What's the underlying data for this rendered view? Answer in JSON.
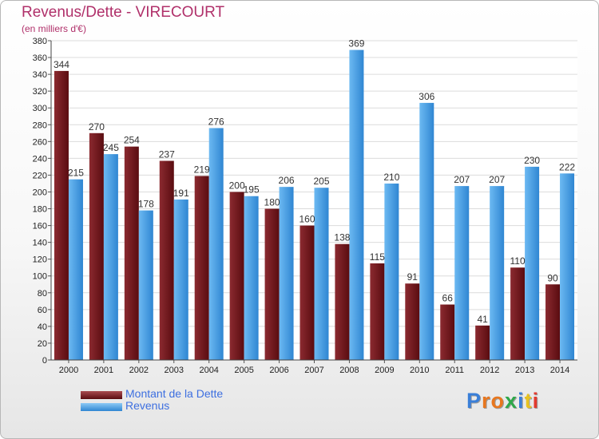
{
  "chart_data": {
    "type": "bar",
    "title": "Revenus/Dette - VIRECOURT",
    "subtitle": "(en milliers d'€)",
    "categories": [
      "2000",
      "2001",
      "2002",
      "2003",
      "2004",
      "2005",
      "2006",
      "2007",
      "2008",
      "2009",
      "2010",
      "2011",
      "2012",
      "2013",
      "2014"
    ],
    "series": [
      {
        "name": "Montant de la Dette",
        "color": "#7a1a1e",
        "values": [
          344,
          270,
          254,
          237,
          219,
          200,
          180,
          160,
          138,
          115,
          91,
          66,
          41,
          110,
          90
        ]
      },
      {
        "name": "Revenus",
        "color": "#4aa3e8",
        "values": [
          215,
          245,
          178,
          191,
          276,
          195,
          206,
          205,
          369,
          210,
          306,
          207,
          207,
          230,
          222
        ]
      }
    ],
    "ylim": [
      0,
      380
    ],
    "ytick_step": 20,
    "grid": true,
    "legend_position": "bottom-left"
  },
  "logo": {
    "letters": [
      "P",
      "r",
      "o",
      "x",
      "i",
      "t",
      "i"
    ],
    "colors": [
      "#3a7fd8",
      "#e8771f",
      "#e8771f",
      "#2fa84a",
      "#3a7fd8",
      "#e8c21f",
      "#e23a2f"
    ]
  }
}
